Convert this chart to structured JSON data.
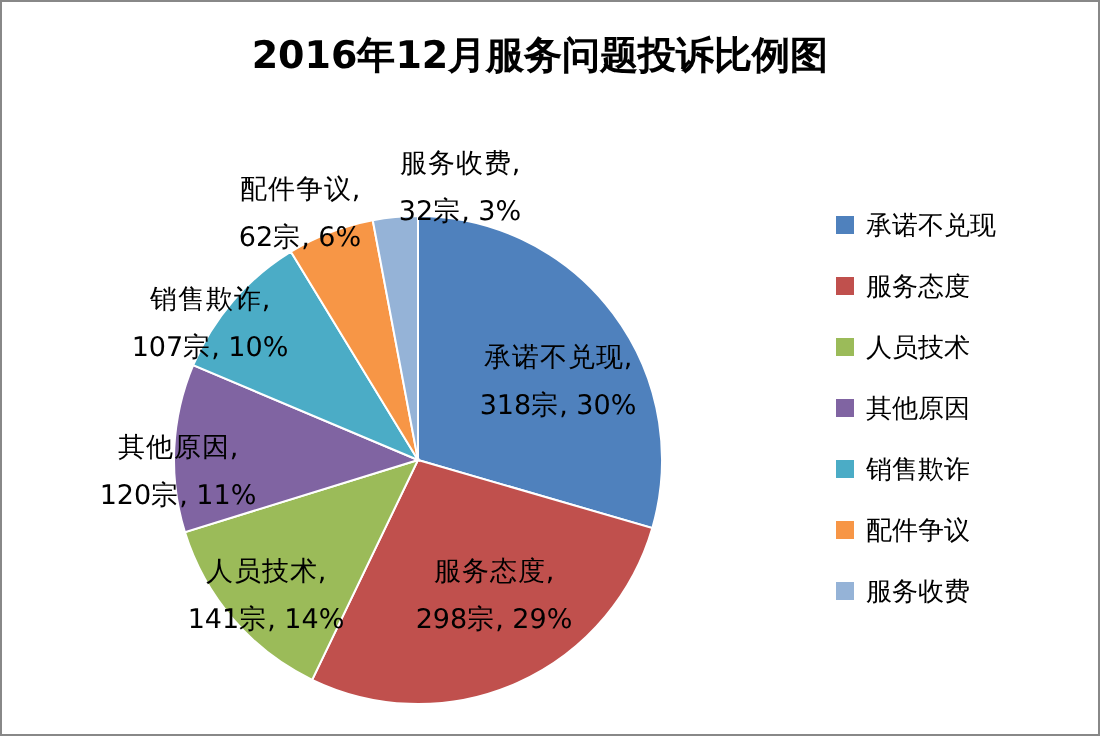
{
  "chart_data": {
    "type": "pie",
    "title": "2016年12月服务问题投诉比例图",
    "categories": [
      "承诺不兑现",
      "服务态度",
      "人员技术",
      "其他原因",
      "销售欺诈",
      "配件争议",
      "服务收费"
    ],
    "values": [
      318,
      298,
      141,
      120,
      107,
      62,
      32
    ],
    "value_labels": [
      "承诺不兑现, 318宗, 30%",
      "服务态度, 298宗, 29%",
      "人员技术, 141宗, 14%",
      "其他原因, 120宗, 11%",
      "销售欺诈, 107宗, 10%",
      "配件争议, 62宗, 6%",
      "服务收费, 32宗, 3%"
    ],
    "colors": [
      "#4f81bd",
      "#c0504d",
      "#9bbb59",
      "#8064a2",
      "#4bacc6",
      "#f79646",
      "#95b3d7"
    ],
    "legend": "right"
  }
}
